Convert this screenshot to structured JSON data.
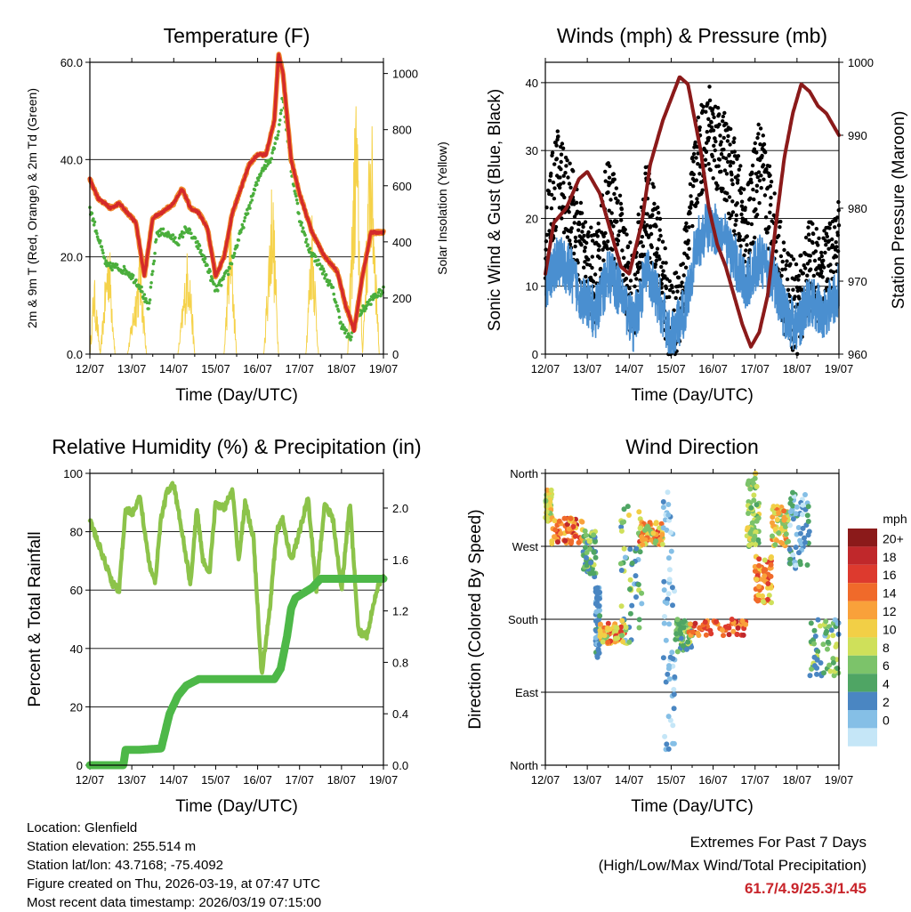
{
  "panels": {
    "temperature": {
      "title": "Temperature (F)",
      "ylabel_left": "2m & 9m T (Red, Orange) & 2m Td (Green)",
      "ylabel_right": "Solar Insolation (Yellow)",
      "xlabel": "Time (Day/UTC)"
    },
    "winds": {
      "title": "Winds (mph) & Pressure (mb)",
      "ylabel_left": "Sonic Wind & Gust (Blue, Black)",
      "ylabel_right": "Station Pressure (Maroon)",
      "xlabel": "Time (Day/UTC)"
    },
    "humidity": {
      "title": "Relative Humidity (%) & Precipitation (in)",
      "ylabel_left": "Percent & Total Rainfall",
      "xlabel": "Time (Day/UTC)"
    },
    "direction": {
      "title": "Wind Direction",
      "ylabel_left": "Direction (Colored By Speed)",
      "xlabel": "Time (Day/UTC)",
      "legend_title": "mph",
      "legend_labels": [
        "20+",
        "18",
        "16",
        "14",
        "12",
        "10",
        "8",
        "6",
        "4",
        "2",
        "0"
      ],
      "legend_colors": [
        "#8b1a1a",
        "#c0282b",
        "#dd3a2e",
        "#f06a2a",
        "#f9a13a",
        "#f2cf46",
        "#cfe05a",
        "#7cc36a",
        "#4fa564",
        "#4a86c2",
        "#85bfe6",
        "#c5e6f7"
      ]
    }
  },
  "info": {
    "location": "Location: Glenfield",
    "elevation": "Station elevation: 255.514 m",
    "latlon": "Station lat/lon: 43.7168; -75.4092",
    "created": "Figure created on Thu, 2026-03-19, at 07:47 UTC",
    "recent": "Most recent data timestamp: 2026/03/19 07:15:00"
  },
  "extremes": {
    "line1": "Extremes For Past 7 Days",
    "line2": "(High/Low/Max Wind/Total Precipitation)",
    "values": "61.7/4.9/25.3/1.45"
  },
  "chart_data": [
    {
      "id": "temperature",
      "type": "line",
      "title": "Temperature (F)",
      "xlabel": "Time (Day/UTC)",
      "ylabel": "2m & 9m T (Red, Orange) & 2m Td (Green)",
      "ylabel_right": "Solar Insolation (Yellow)",
      "x_ticks": [
        "12/07",
        "13/07",
        "14/07",
        "15/07",
        "16/07",
        "17/07",
        "18/07",
        "19/07"
      ],
      "xlim": [
        0,
        7
      ],
      "ylim": [
        0,
        60
      ],
      "y_ticks": [
        "0.0",
        "20.0",
        "40.0",
        "60.0"
      ],
      "y_tick_values": [
        0,
        20,
        40,
        60
      ],
      "y2lim": [
        0,
        1040
      ],
      "y2_ticks": [
        "0",
        "200",
        "400",
        "600",
        "800",
        "1000"
      ],
      "y2_tick_values": [
        0,
        200,
        400,
        600,
        800,
        1000
      ],
      "series": [
        {
          "name": "2m T",
          "color": "#d42a2a",
          "x": [
            0,
            0.2,
            0.5,
            0.7,
            0.9,
            1.1,
            1.3,
            1.5,
            1.7,
            2.0,
            2.2,
            2.4,
            2.6,
            2.8,
            3.0,
            3.2,
            3.4,
            3.6,
            3.8,
            4.0,
            4.2,
            4.4,
            4.5,
            4.6,
            4.8,
            5.0,
            5.3,
            5.6,
            5.9,
            6.1,
            6.3,
            6.5,
            6.7,
            6.9,
            7.0
          ],
          "values": [
            36,
            32,
            30,
            31,
            29,
            27,
            16,
            28,
            29,
            31,
            34,
            30,
            29,
            26,
            16,
            20,
            29,
            34,
            39,
            41,
            41,
            48,
            61.7,
            58,
            40,
            33,
            25,
            20,
            17,
            10,
            4.9,
            16,
            25,
            25,
            25
          ]
        },
        {
          "name": "2m Td",
          "color": "#4aae3c",
          "x": [
            0,
            0.2,
            0.4,
            0.6,
            0.9,
            1.2,
            1.4,
            1.6,
            1.8,
            2.1,
            2.3,
            2.6,
            2.8,
            3.0,
            3.3,
            3.6,
            3.9,
            4.1,
            4.3,
            4.5,
            4.6,
            4.8,
            5.0,
            5.2,
            5.5,
            5.8,
            6.0,
            6.2,
            6.4,
            6.6,
            6.8,
            7.0
          ],
          "values": [
            30,
            24,
            18,
            18,
            17,
            14,
            9,
            25,
            25,
            23,
            26,
            22,
            18,
            13,
            17,
            25,
            33,
            38,
            40,
            46,
            53,
            38,
            28,
            22,
            18,
            13,
            6,
            3,
            8,
            10,
            12,
            13
          ]
        },
        {
          "name": "Solar Insolation",
          "axis": "right",
          "color": "#f5d24a",
          "x": [
            0,
            0.1,
            0.25,
            0.45,
            0.6,
            0.9,
            1.2,
            1.35,
            1.5,
            1.75,
            2.1,
            2.35,
            2.5,
            2.75,
            3.2,
            3.35,
            3.5,
            3.75,
            4.15,
            4.35,
            4.5,
            4.75,
            5.15,
            5.3,
            5.45,
            5.75,
            6.15,
            6.35,
            6.5,
            6.7,
            6.9,
            7.0
          ],
          "values": [
            0,
            300,
            0,
            480,
            0,
            0,
            400,
            0,
            0,
            0,
            0,
            430,
            0,
            0,
            0,
            520,
            0,
            0,
            0,
            700,
            0,
            0,
            0,
            560,
            0,
            0,
            0,
            1020,
            0,
            950,
            0,
            0
          ]
        }
      ]
    },
    {
      "id": "winds",
      "type": "scatter",
      "title": "Winds (mph) & Pressure (mb)",
      "xlabel": "Time (Day/UTC)",
      "ylabel": "Sonic Wind & Gust (Blue, Black)",
      "ylabel_right": "Station Pressure (Maroon)",
      "x_ticks": [
        "12/07",
        "13/07",
        "14/07",
        "15/07",
        "16/07",
        "17/07",
        "18/07",
        "19/07"
      ],
      "xlim": [
        0,
        7
      ],
      "ylim": [
        0,
        43
      ],
      "y_ticks": [
        "0",
        "10",
        "20",
        "30",
        "40"
      ],
      "y_tick_values": [
        0,
        10,
        20,
        30,
        40
      ],
      "y2lim": [
        960,
        1000
      ],
      "y2_ticks": [
        "960",
        "970",
        "980",
        "990",
        "1000"
      ],
      "y2_tick_values": [
        960,
        970,
        980,
        990,
        1000
      ],
      "series": [
        {
          "name": "Sonic Wind",
          "color": "#4a8fd0",
          "x": [
            0,
            0.3,
            0.6,
            0.9,
            1.2,
            1.5,
            1.8,
            2.1,
            2.4,
            2.7,
            3.0,
            3.3,
            3.6,
            3.9,
            4.2,
            4.5,
            4.8,
            5.1,
            5.4,
            5.7,
            6.0,
            6.3,
            6.6,
            6.9,
            7.0
          ],
          "values": [
            10,
            14,
            12,
            8,
            6,
            12,
            9,
            4,
            12,
            8,
            2,
            6,
            16,
            19,
            18,
            14,
            10,
            14,
            12,
            6,
            4,
            8,
            6,
            8,
            10
          ]
        },
        {
          "name": "Gust",
          "color": "#000000",
          "x": [
            0,
            0.3,
            0.6,
            0.9,
            1.2,
            1.5,
            1.8,
            2.1,
            2.4,
            2.7,
            3.0,
            3.3,
            3.6,
            3.9,
            4.2,
            4.5,
            4.8,
            5.1,
            5.4,
            5.7,
            6.0,
            6.3,
            6.6,
            6.9,
            7.0
          ],
          "values": [
            17,
            27,
            22,
            14,
            11,
            23,
            16,
            8,
            22,
            15,
            3,
            11,
            28,
            33,
            30,
            25,
            17,
            28,
            20,
            10,
            6,
            13,
            11,
            14,
            16
          ]
        },
        {
          "name": "Station Pressure",
          "axis": "right",
          "color": "#8b1a1a",
          "x": [
            0,
            0.2,
            0.5,
            0.8,
            1.0,
            1.3,
            1.6,
            1.8,
            2.0,
            2.3,
            2.5,
            2.8,
            3.0,
            3.2,
            3.4,
            3.7,
            3.9,
            4.1,
            4.3,
            4.5,
            4.7,
            4.9,
            5.1,
            5.3,
            5.5,
            5.7,
            5.9,
            6.1,
            6.3,
            6.5,
            6.7,
            6.9,
            7.0
          ],
          "values": [
            971,
            978,
            980,
            984,
            985,
            982,
            976,
            972,
            971,
            978,
            986,
            992,
            995,
            998,
            997,
            988,
            980,
            975,
            972,
            968,
            964,
            961,
            963,
            968,
            978,
            987,
            993,
            997,
            996,
            994,
            993,
            991,
            990
          ]
        }
      ]
    },
    {
      "id": "humidity",
      "type": "line",
      "title": "Relative Humidity (%) & Precipitation (in)",
      "xlabel": "Time (Day/UTC)",
      "ylabel": "Percent & Total Rainfall",
      "x_ticks": [
        "12/07",
        "13/07",
        "14/07",
        "15/07",
        "16/07",
        "17/07",
        "18/07",
        "19/07"
      ],
      "xlim": [
        0,
        7
      ],
      "ylim": [
        0,
        100
      ],
      "y_ticks": [
        "0",
        "20",
        "40",
        "60",
        "80",
        "100"
      ],
      "y_tick_values": [
        0,
        20,
        40,
        60,
        80,
        100
      ],
      "y2lim": [
        0,
        2.27
      ],
      "y2_ticks": [
        "0.0",
        "0.4",
        "0.8",
        "1.2",
        "1.6",
        "2.0"
      ],
      "y2_tick_values": [
        0,
        0.4,
        0.8,
        1.2,
        1.6,
        2.0
      ],
      "series": [
        {
          "name": "Relative Humidity",
          "color": "#8cc34a",
          "x": [
            0,
            0.15,
            0.35,
            0.55,
            0.7,
            0.85,
            1.0,
            1.2,
            1.4,
            1.55,
            1.7,
            1.85,
            2.0,
            2.2,
            2.4,
            2.55,
            2.7,
            2.85,
            3.0,
            3.2,
            3.4,
            3.55,
            3.7,
            3.9,
            4.1,
            4.3,
            4.45,
            4.6,
            4.8,
            5.0,
            5.2,
            5.4,
            5.6,
            5.8,
            6.0,
            6.2,
            6.4,
            6.6,
            6.8,
            7.0
          ],
          "values": [
            84,
            78,
            70,
            62,
            60,
            88,
            86,
            92,
            70,
            62,
            85,
            94,
            96,
            80,
            62,
            88,
            70,
            66,
            90,
            88,
            94,
            70,
            90,
            78,
            30,
            55,
            80,
            84,
            70,
            80,
            92,
            60,
            90,
            84,
            60,
            90,
            46,
            44,
            58,
            66
          ]
        },
        {
          "name": "Total Rainfall",
          "axis": "right",
          "color": "#4db848",
          "x": [
            0,
            0.8,
            0.85,
            1.2,
            1.7,
            1.9,
            2.1,
            2.3,
            2.6,
            3.5,
            4.4,
            4.55,
            4.7,
            4.8,
            4.9,
            5.0,
            5.3,
            5.5,
            6.0,
            7.0
          ],
          "values": [
            0,
            0,
            0.12,
            0.12,
            0.13,
            0.4,
            0.54,
            0.62,
            0.67,
            0.67,
            0.67,
            0.75,
            1.0,
            1.22,
            1.3,
            1.32,
            1.38,
            1.45,
            1.45,
            1.45
          ]
        }
      ]
    },
    {
      "id": "direction",
      "type": "scatter",
      "title": "Wind Direction",
      "xlabel": "Time (Day/UTC)",
      "ylabel": "Direction (Colored By Speed)",
      "x_ticks": [
        "12/07",
        "13/07",
        "14/07",
        "15/07",
        "16/07",
        "17/07",
        "18/07",
        "19/07"
      ],
      "xlim": [
        0,
        7
      ],
      "ylim": [
        0,
        360
      ],
      "y_ticks": [
        "North",
        "East",
        "South",
        "West",
        "North"
      ],
      "y_tick_values": [
        0,
        90,
        180,
        270,
        360
      ],
      "series": [
        {
          "name": "Direction",
          "color_by": "speed",
          "clusters": [
            {
              "x": [
                0.0,
                0.15
              ],
              "dir": [
                300,
                340
              ],
              "speed": [
                8,
                14
              ]
            },
            {
              "x": [
                0.15,
                0.9
              ],
              "dir": [
                270,
                305
              ],
              "speed": [
                12,
                20
              ]
            },
            {
              "x": [
                0.9,
                1.2
              ],
              "dir": [
                230,
                290
              ],
              "speed": [
                4,
                10
              ]
            },
            {
              "x": [
                1.2,
                1.3
              ],
              "dir": [
                130,
                220
              ],
              "speed": [
                2,
                6
              ]
            },
            {
              "x": [
                1.3,
                1.9
              ],
              "dir": [
                150,
                175
              ],
              "speed": [
                8,
                18
              ]
            },
            {
              "x": [
                1.8,
                2.3
              ],
              "dir": [
                150,
                320
              ],
              "speed": [
                2,
                12
              ]
            },
            {
              "x": [
                2.2,
                2.8
              ],
              "dir": [
                270,
                300
              ],
              "speed": [
                8,
                18
              ]
            },
            {
              "x": [
                2.8,
                3.1
              ],
              "dir": [
                10,
                340
              ],
              "speed": [
                0,
                4
              ]
            },
            {
              "x": [
                3.1,
                3.5
              ],
              "dir": [
                140,
                180
              ],
              "speed": [
                4,
                10
              ]
            },
            {
              "x": [
                3.4,
                4.8
              ],
              "dir": [
                160,
                180
              ],
              "speed": [
                14,
                20
              ]
            },
            {
              "x": [
                4.8,
                5.1
              ],
              "dir": [
                270,
                360
              ],
              "speed": [
                6,
                12
              ]
            },
            {
              "x": [
                5.0,
                5.4
              ],
              "dir": [
                200,
                260
              ],
              "speed": [
                10,
                18
              ]
            },
            {
              "x": [
                5.4,
                5.8
              ],
              "dir": [
                270,
                320
              ],
              "speed": [
                8,
                16
              ]
            },
            {
              "x": [
                5.8,
                6.3
              ],
              "dir": [
                240,
                340
              ],
              "speed": [
                0,
                6
              ]
            },
            {
              "x": [
                6.3,
                7.0
              ],
              "dir": [
                110,
                180
              ],
              "speed": [
                2,
                10
              ]
            }
          ]
        }
      ]
    }
  ]
}
